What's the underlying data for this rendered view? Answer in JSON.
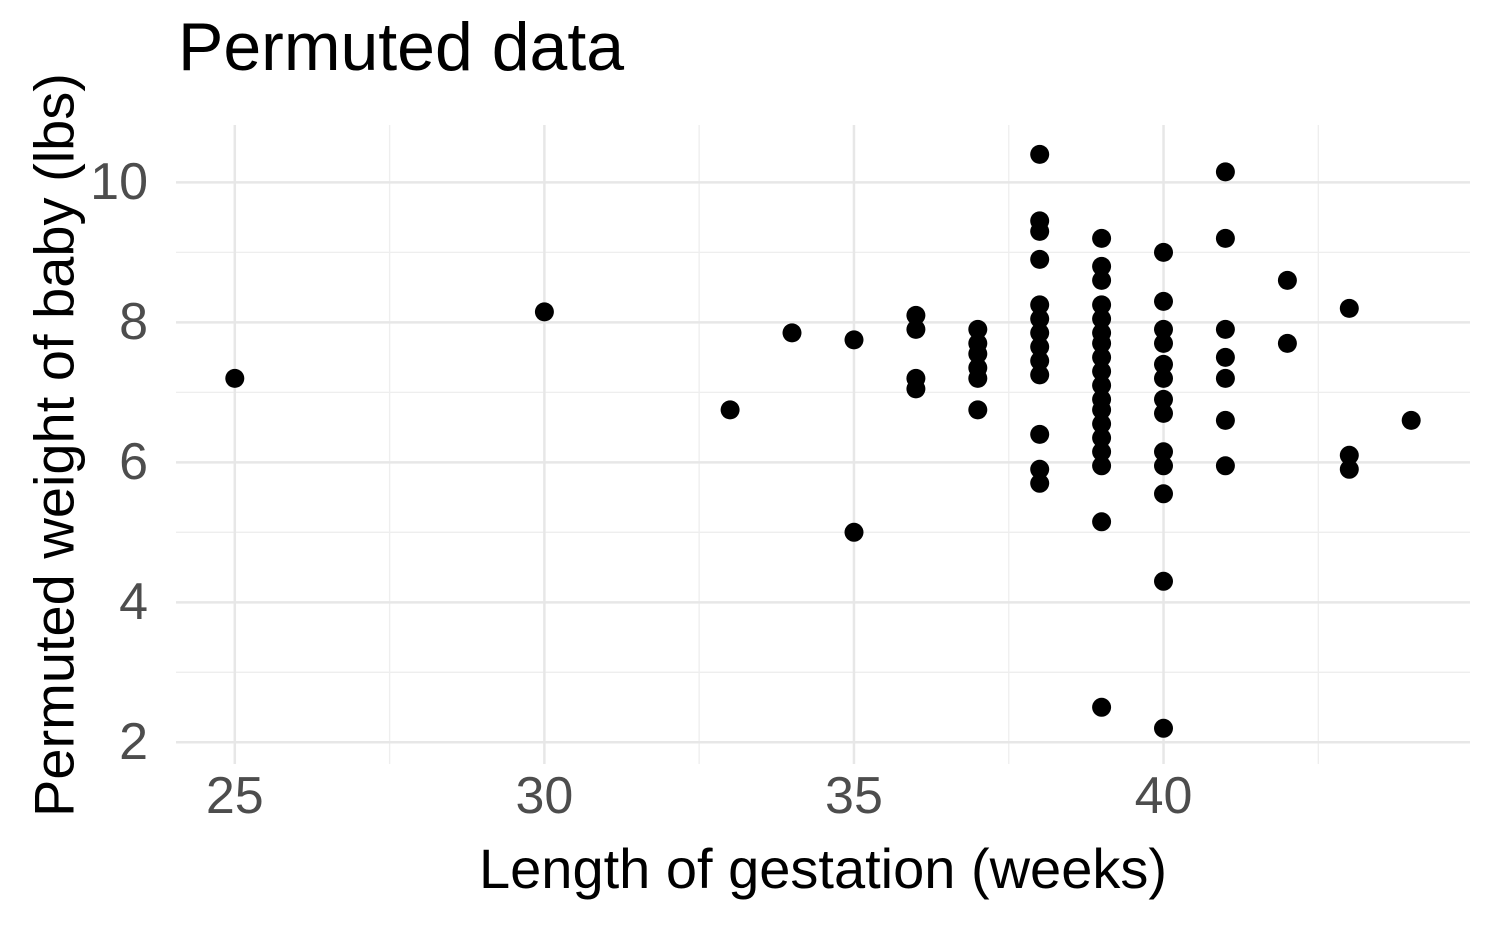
{
  "title": "Permuted data",
  "chart_data": {
    "type": "scatter",
    "title": "Permuted data",
    "xlabel": "Length of gestation (weeks)",
    "ylabel": "Permuted weight of baby (lbs)",
    "x_ticks": [
      25,
      30,
      35,
      40
    ],
    "x_minor": [
      27.5,
      32.5,
      37.5,
      42.5
    ],
    "y_ticks": [
      2,
      4,
      6,
      8,
      10
    ],
    "y_minor": [
      3,
      5,
      7,
      9
    ],
    "xlim": [
      24.05,
      44.95
    ],
    "ylim": [
      1.69,
      10.82
    ],
    "grid": true,
    "legend_position": "none",
    "point_color": "#000000",
    "grid_major_color": "#e7e7e7",
    "grid_minor_color": "#eeeeee",
    "tick_label_color": "#4d4d4d",
    "background_color": "#ffffff",
    "points": [
      [
        25,
        7.2
      ],
      [
        30,
        8.15
      ],
      [
        33,
        6.75
      ],
      [
        34,
        7.85
      ],
      [
        35,
        7.75
      ],
      [
        35,
        5.0
      ],
      [
        36,
        8.1
      ],
      [
        36,
        7.9
      ],
      [
        36,
        7.2
      ],
      [
        36,
        7.05
      ],
      [
        37,
        7.9
      ],
      [
        37,
        7.7
      ],
      [
        37,
        7.55
      ],
      [
        37,
        7.35
      ],
      [
        37,
        7.2
      ],
      [
        37,
        6.75
      ],
      [
        38,
        10.4
      ],
      [
        38,
        9.45
      ],
      [
        38,
        9.3
      ],
      [
        38,
        8.9
      ],
      [
        38,
        8.25
      ],
      [
        38,
        8.05
      ],
      [
        38,
        7.85
      ],
      [
        38,
        7.65
      ],
      [
        38,
        7.45
      ],
      [
        38,
        7.25
      ],
      [
        38,
        6.4
      ],
      [
        38,
        5.9
      ],
      [
        38,
        5.7
      ],
      [
        39,
        9.2
      ],
      [
        39,
        8.8
      ],
      [
        39,
        8.6
      ],
      [
        39,
        8.25
      ],
      [
        39,
        8.05
      ],
      [
        39,
        7.85
      ],
      [
        39,
        7.7
      ],
      [
        39,
        7.5
      ],
      [
        39,
        7.3
      ],
      [
        39,
        7.1
      ],
      [
        39,
        6.9
      ],
      [
        39,
        6.75
      ],
      [
        39,
        6.55
      ],
      [
        39,
        6.35
      ],
      [
        39,
        6.15
      ],
      [
        39,
        5.95
      ],
      [
        39,
        5.15
      ],
      [
        39,
        2.5
      ],
      [
        40,
        9.0
      ],
      [
        40,
        8.3
      ],
      [
        40,
        7.9
      ],
      [
        40,
        7.7
      ],
      [
        40,
        7.4
      ],
      [
        40,
        7.2
      ],
      [
        40,
        6.9
      ],
      [
        40,
        6.7
      ],
      [
        40,
        6.15
      ],
      [
        40,
        5.95
      ],
      [
        40,
        5.55
      ],
      [
        40,
        4.3
      ],
      [
        40,
        2.2
      ],
      [
        41,
        10.15
      ],
      [
        41,
        9.2
      ],
      [
        41,
        7.9
      ],
      [
        41,
        7.5
      ],
      [
        41,
        7.2
      ],
      [
        41,
        6.6
      ],
      [
        41,
        5.95
      ],
      [
        42,
        8.6
      ],
      [
        42,
        7.7
      ],
      [
        43,
        8.2
      ],
      [
        43,
        6.1
      ],
      [
        43,
        5.9
      ],
      [
        44,
        6.6
      ]
    ]
  }
}
